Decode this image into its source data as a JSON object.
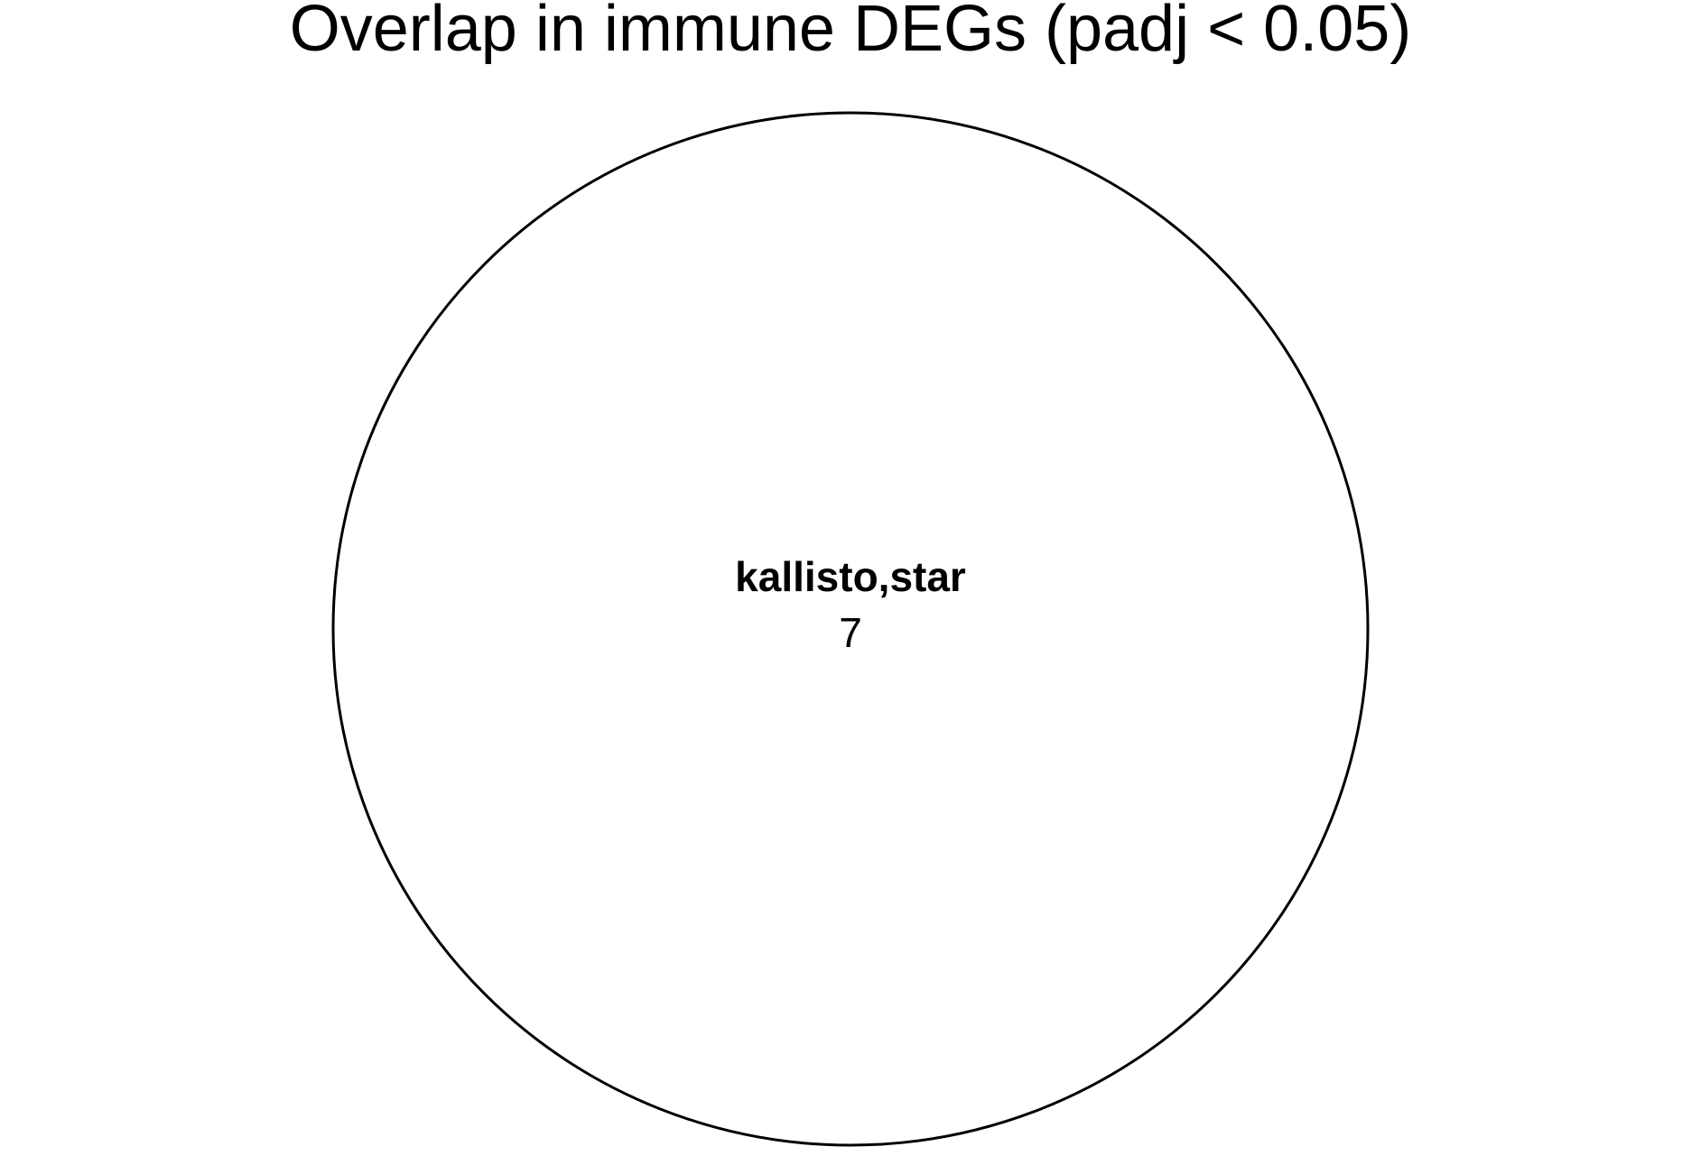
{
  "title": "Overlap in immune DEGs (padj < 0.05)",
  "venn": {
    "region_label": "kallisto,star",
    "region_count": "7",
    "stroke_color": "#000000",
    "fill_color": "#ffffff"
  }
}
